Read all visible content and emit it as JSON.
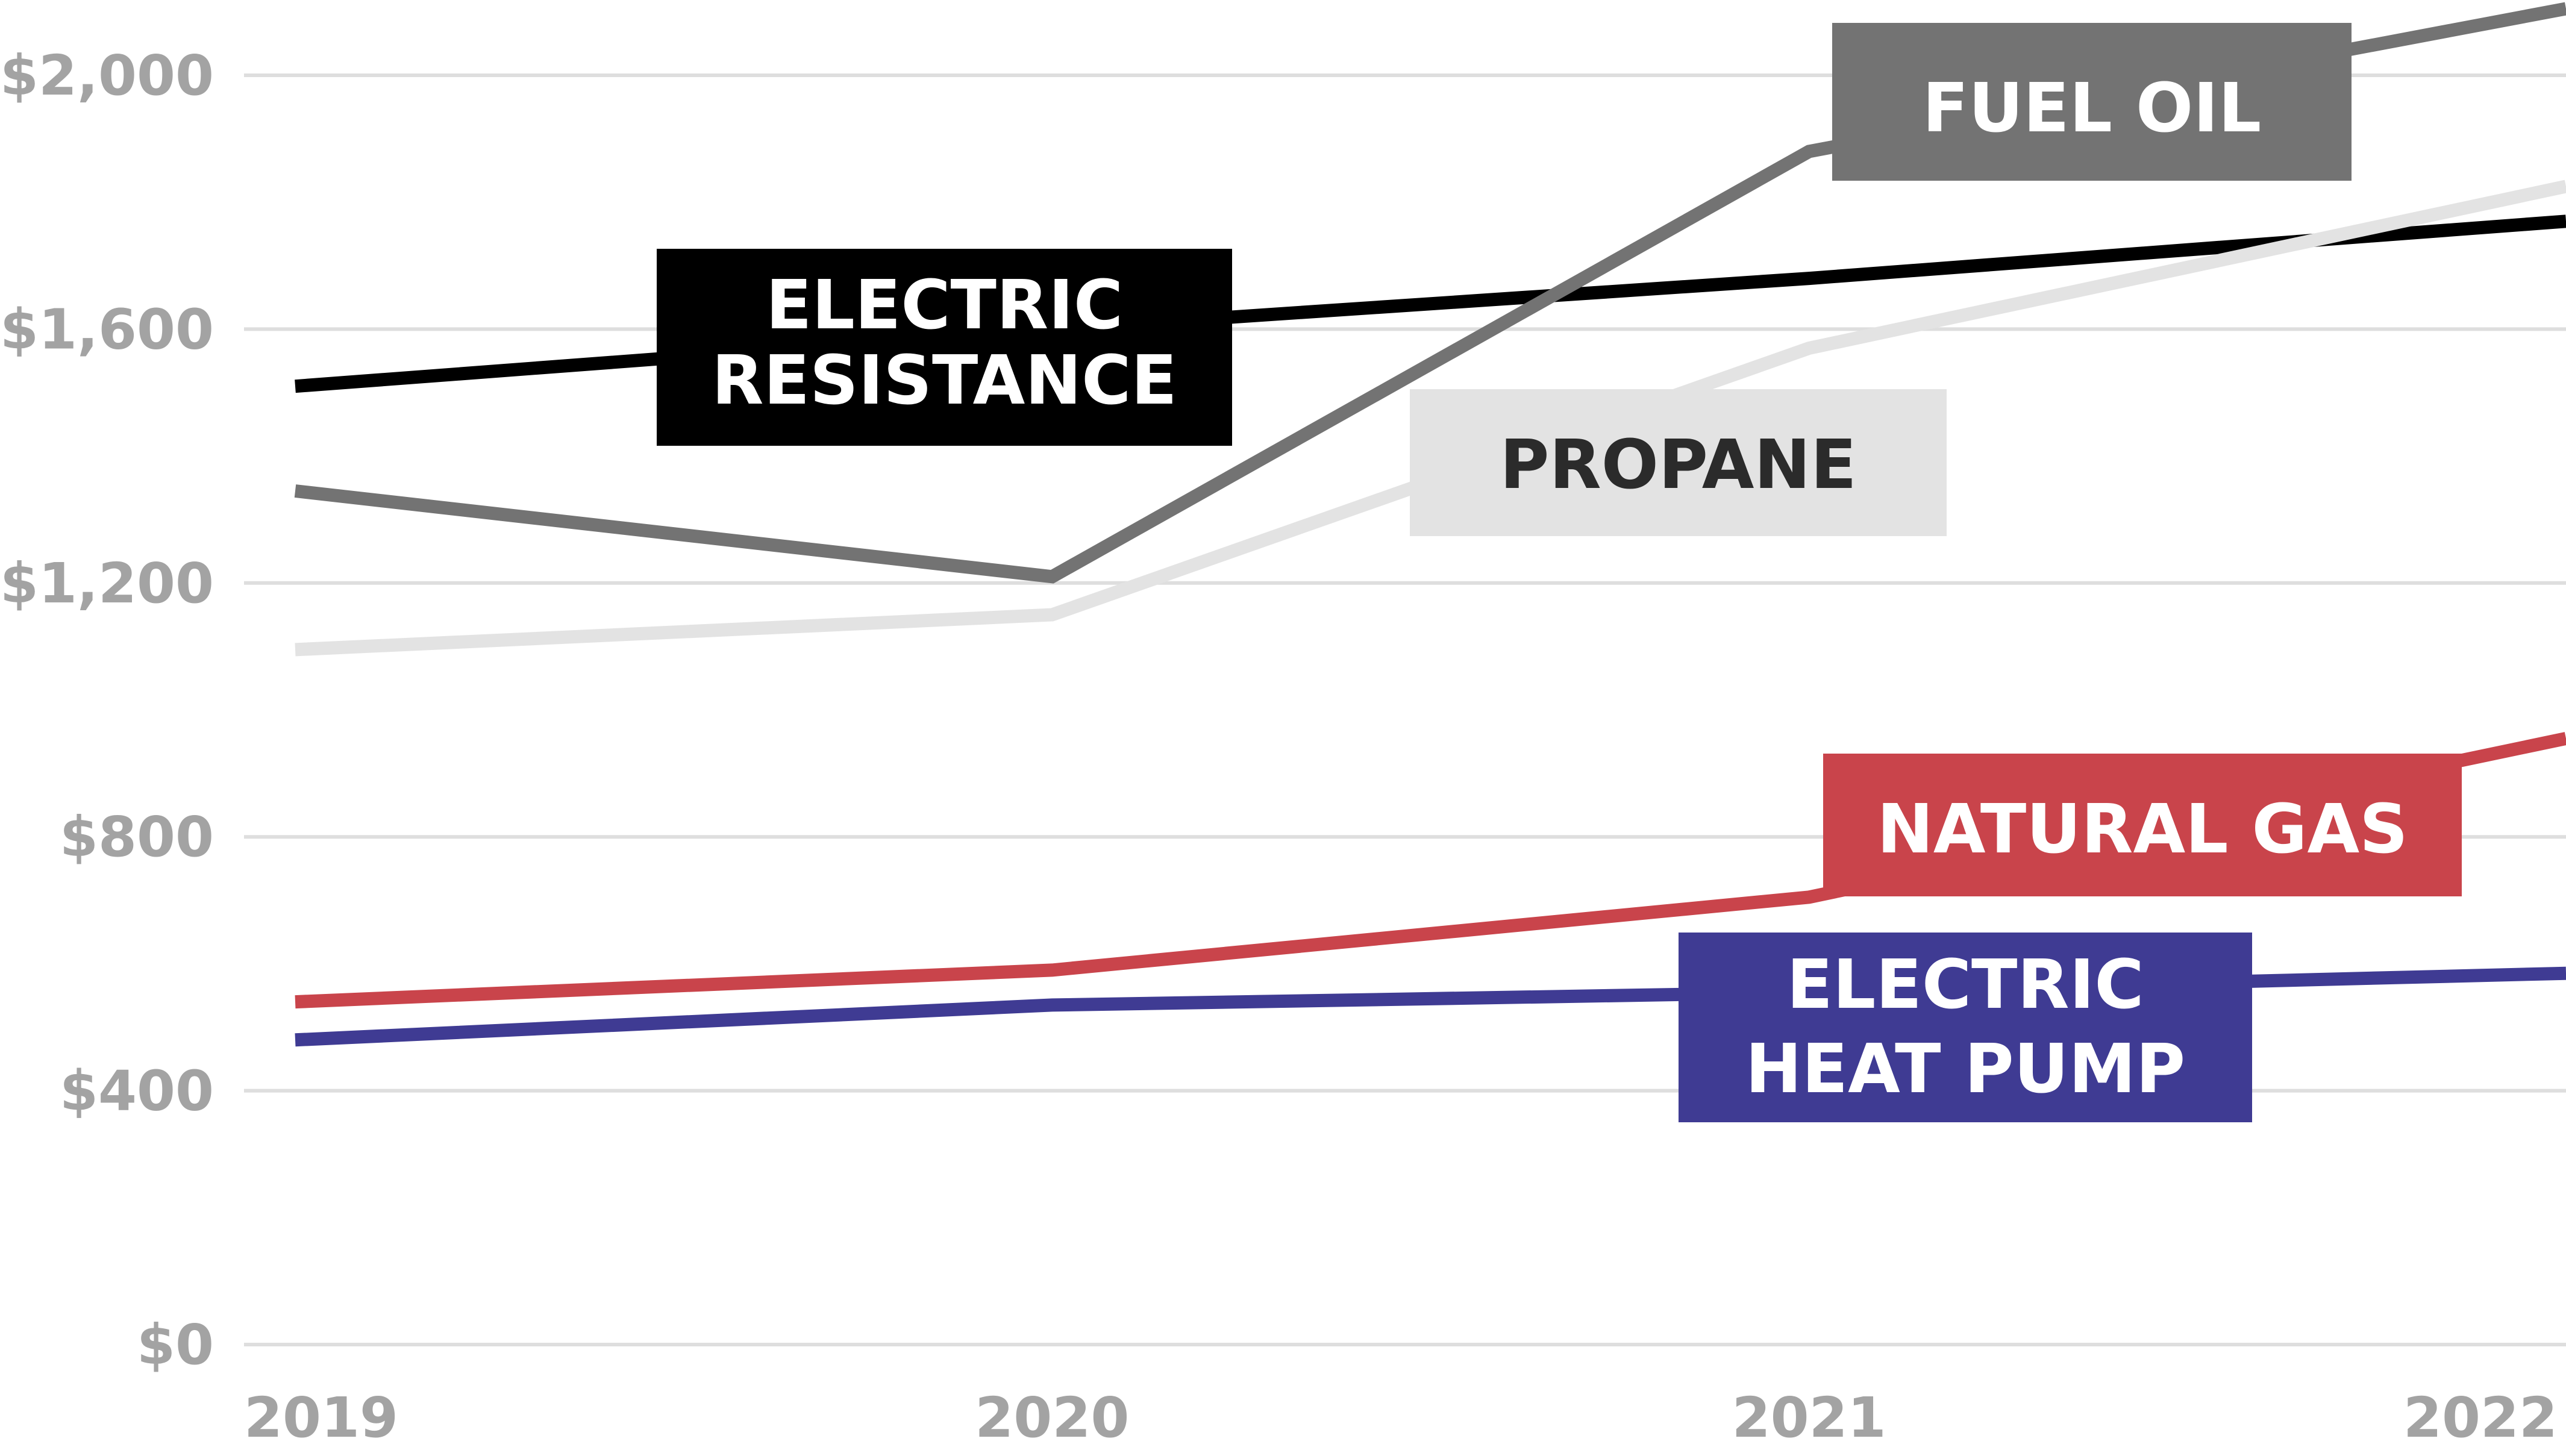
{
  "chart_data": {
    "type": "line",
    "x": [
      "2019",
      "2020",
      "2021",
      "2022"
    ],
    "ylim": [
      0,
      2000
    ],
    "yticks": [
      "$0",
      "$400",
      "$800",
      "$1,200",
      "$1,600",
      "$2,000"
    ],
    "grid": true,
    "series": [
      {
        "name": "ELECTRIC RESISTANCE",
        "label_lines": [
          "ELECTRIC",
          "RESISTANCE"
        ],
        "color": "#000000",
        "label_text_color": "#ffffff",
        "values": [
          1510,
          1600,
          1680,
          1770
        ]
      },
      {
        "name": "FUEL OIL",
        "label_lines": [
          "FUEL OIL"
        ],
        "color": "#737373",
        "label_text_color": "#ffffff",
        "values": [
          1345,
          1210,
          1880,
          2105
        ]
      },
      {
        "name": "PROPANE",
        "label_lines": [
          "PROPANE"
        ],
        "color": "#e3e3e3",
        "label_text_color": "#2b2b2b",
        "values": [
          1095,
          1150,
          1570,
          1825
        ]
      },
      {
        "name": "NATURAL GAS",
        "label_lines": [
          "NATURAL GAS"
        ],
        "color": "#c9444b",
        "label_text_color": "#ffffff",
        "values": [
          540,
          590,
          705,
          955
        ]
      },
      {
        "name": "ELECTRIC HEAT PUMP",
        "label_lines": [
          "ELECTRIC",
          "HEAT PUMP"
        ],
        "color": "#3f3b93",
        "label_text_color": "#ffffff",
        "values": [
          480,
          535,
          555,
          585
        ]
      }
    ]
  }
}
